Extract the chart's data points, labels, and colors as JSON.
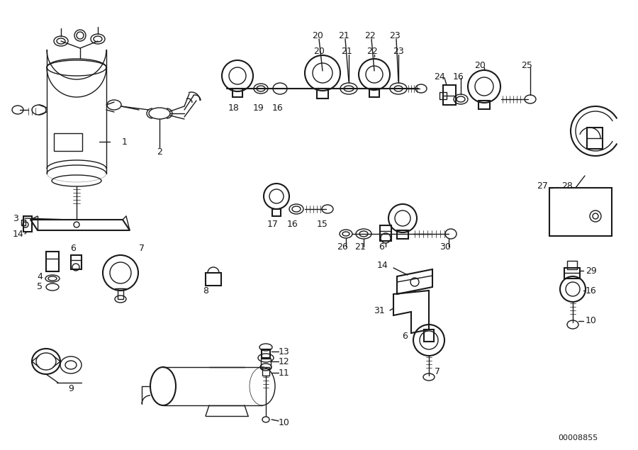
{
  "background_color": "#ffffff",
  "line_color": "#1a1a1a",
  "text_color": "#1a1a1a",
  "diagram_id": "00008855",
  "fig_width": 9.0,
  "fig_height": 6.35,
  "dpi": 100,
  "lw": 1.0,
  "lw_thick": 1.5
}
